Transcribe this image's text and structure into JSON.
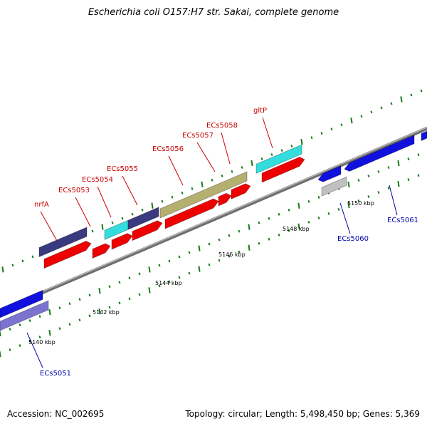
{
  "title": "Escherichia coli O157:H7 str. Sakai, complete genome",
  "footer": {
    "accession": "Accession: NC_002695",
    "summary": "Topology: circular; Length: 5,498,450 bp; Genes: 5,369"
  },
  "scale_labels": [
    "5140 kbp",
    "5142 kbp",
    "5144 kbp",
    "5146 kbp",
    "5148 kbp",
    "5150 kbp"
  ],
  "genes_upper": [
    "nrfA",
    "ECs5053",
    "ECs5054",
    "ECs5055",
    "ECs5056",
    "ECs5057",
    "ECs5058",
    "gltP"
  ],
  "genes_lower": [
    "ECs5051",
    "ECs5060",
    "ECs5061"
  ],
  "colors": {
    "label_upper": "#cc0000",
    "label_lower": "#0000aa",
    "cds": "#ee0000",
    "gene_blue": "#1111dd",
    "navy": "#3a3a80",
    "cyan": "#33dddd",
    "olive": "#b5b070",
    "lavender": "#7b73cf",
    "grey": "#c0c0c0",
    "backbone": "#808080",
    "tick": "#1a7a1a"
  }
}
